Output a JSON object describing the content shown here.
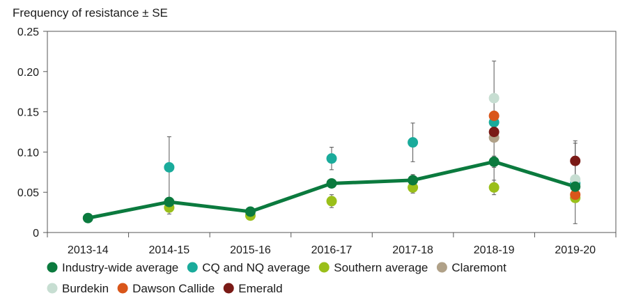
{
  "chart_data": {
    "type": "line",
    "ylabel": "Frequency of resistance ± SE",
    "categories": [
      "2013-14",
      "2014-15",
      "2015-16",
      "2016-17",
      "2017-18",
      "2018-19",
      "2019-20"
    ],
    "ylim": [
      0,
      0.25
    ],
    "yticks": [
      0,
      0.05,
      0.1,
      0.15,
      0.2,
      0.25
    ],
    "ytick_labels": [
      "0",
      "0.05",
      "0.10",
      "0.15",
      "0.20",
      "0.25"
    ],
    "grid": false,
    "legend_position": "bottom",
    "series": [
      {
        "name": "Industry-wide average",
        "color": "#0b7a3e",
        "style": "line-markers",
        "values": [
          0.018,
          0.038,
          0.026,
          0.061,
          0.065,
          0.088,
          0.057
        ],
        "errors": [
          null,
          null,
          null,
          0.004,
          0.007,
          0.007,
          null
        ]
      },
      {
        "name": "CQ and NQ average",
        "color": "#1aab9b",
        "style": "markers",
        "values": [
          null,
          0.081,
          null,
          0.092,
          0.112,
          0.137,
          0.061
        ],
        "errors": [
          null,
          0.038,
          null,
          0.014,
          0.024,
          0.076,
          0.05
        ]
      },
      {
        "name": "Southern average",
        "color": "#9abf1a",
        "style": "markers",
        "values": [
          null,
          0.031,
          0.021,
          0.039,
          0.056,
          0.056,
          0.043
        ],
        "errors": [
          null,
          0.008,
          null,
          0.008,
          0.007,
          0.009,
          null
        ]
      },
      {
        "name": "Claremont",
        "color": "#b0a188",
        "style": "markers",
        "values": [
          null,
          null,
          null,
          null,
          null,
          0.118,
          null
        ],
        "errors": [
          null,
          null,
          null,
          null,
          null,
          null,
          null
        ]
      },
      {
        "name": "Burdekin",
        "color": "#c7ded2",
        "style": "markers",
        "values": [
          null,
          null,
          null,
          null,
          null,
          0.167,
          0.066
        ],
        "errors": [
          null,
          null,
          null,
          null,
          null,
          null,
          null
        ]
      },
      {
        "name": "Dawson Callide",
        "color": "#d9561a",
        "style": "markers",
        "values": [
          null,
          null,
          null,
          null,
          null,
          0.145,
          0.047
        ],
        "errors": [
          null,
          null,
          null,
          null,
          null,
          null,
          null
        ]
      },
      {
        "name": "Emerald",
        "color": "#7a1a16",
        "style": "markers",
        "values": [
          null,
          null,
          null,
          null,
          null,
          0.125,
          0.089
        ],
        "errors": [
          null,
          null,
          null,
          null,
          null,
          null,
          0.025
        ]
      }
    ]
  }
}
